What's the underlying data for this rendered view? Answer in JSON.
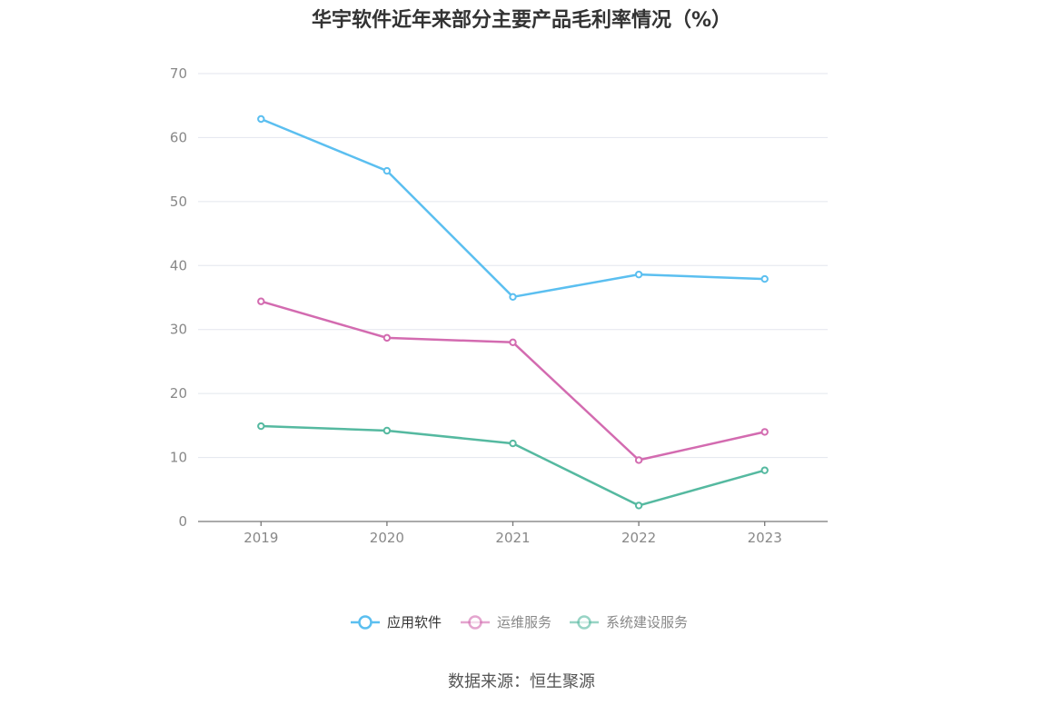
{
  "chart_data": {
    "type": "line",
    "title": "华宇软件近年来部分主要产品毛利率情况（%）",
    "x": [
      "2019",
      "2020",
      "2021",
      "2022",
      "2023"
    ],
    "ylim": [
      0,
      70
    ],
    "yticks": [
      0,
      10,
      20,
      30,
      40,
      50,
      60,
      70
    ],
    "grid": true,
    "legend_position": "bottom",
    "series": [
      {
        "name": "应用软件",
        "color": "#5bbff0",
        "values": [
          62.9,
          54.8,
          35.1,
          38.6,
          37.9
        ]
      },
      {
        "name": "运维服务",
        "color": "#d36bb0",
        "values": [
          34.4,
          28.7,
          28.0,
          9.6,
          14.0
        ]
      },
      {
        "name": "系统建设服务",
        "color": "#55b9a0",
        "values": [
          14.9,
          14.2,
          12.2,
          2.5,
          8.0
        ]
      }
    ]
  },
  "source": "数据来源：恒生聚源"
}
